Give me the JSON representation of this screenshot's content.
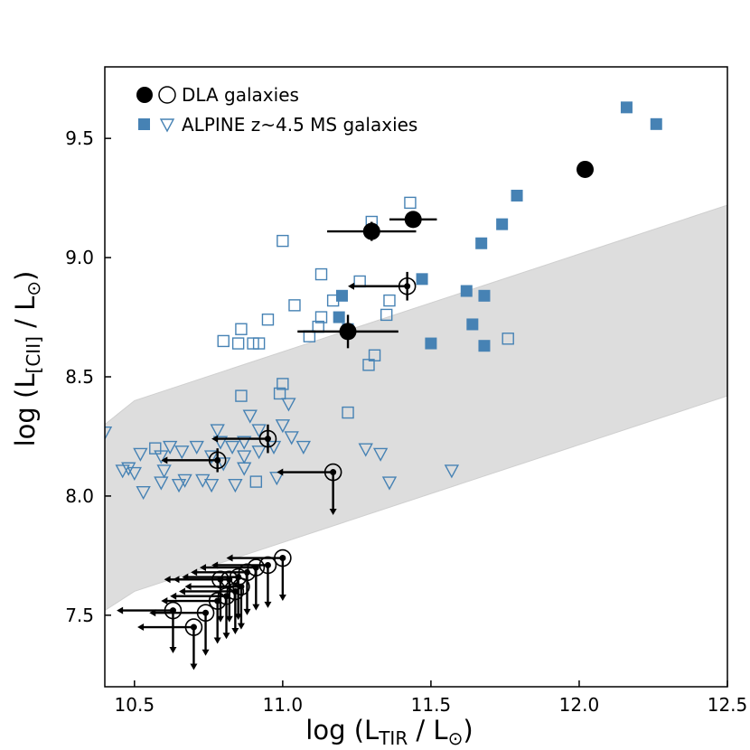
{
  "chart_data": {
    "type": "scatter",
    "xlabel_main": "log (L",
    "xlabel_sub": "TIR",
    "xlabel_tail": " / L",
    "xlabel_sun": "⊙",
    "xlabel_end": ")",
    "ylabel_main": "log (L",
    "ylabel_sub": "[CII]",
    "ylabel_tail": " / L",
    "ylabel_sun": "⊙",
    "ylabel_end": ")",
    "xlim": [
      10.4,
      12.5
    ],
    "ylim": [
      7.2,
      9.8
    ],
    "xticks": [
      10.5,
      11.0,
      11.5,
      12.0,
      12.5
    ],
    "xtick_labels": [
      "10.5",
      "11.0",
      "11.5",
      "12.0",
      "12.5"
    ],
    "yticks": [
      7.5,
      8.0,
      8.5,
      9.0,
      9.5
    ],
    "ytick_labels": [
      "7.5",
      "8.0",
      "8.5",
      "9.0",
      "9.5"
    ],
    "legend": [
      {
        "label": "DLA galaxies",
        "markers": [
          "filled-circle",
          "open-circle"
        ],
        "color": "#000000"
      },
      {
        "label": "ALPINE z~4.5 MS galaxies",
        "markers": [
          "filled-square",
          "open-triangle-down"
        ],
        "color": "#4682b4"
      }
    ],
    "band": {
      "color": "#dddddd",
      "upper": [
        [
          10.4,
          8.3
        ],
        [
          10.5,
          8.4
        ],
        [
          12.5,
          9.22
        ]
      ],
      "lower": [
        [
          10.4,
          7.52
        ],
        [
          10.5,
          7.6
        ],
        [
          12.5,
          8.42
        ]
      ]
    },
    "series": [
      {
        "name": "DLA detections",
        "marker": "filled-circle",
        "color": "#000000",
        "points": [
          {
            "x": 12.02,
            "y": 9.37,
            "xerr": 0.02,
            "yerr": 0.02
          },
          {
            "x": 11.44,
            "y": 9.16,
            "xerr": 0.08,
            "yerr": 0.03
          },
          {
            "x": 11.3,
            "y": 9.11,
            "xerr": 0.15,
            "yerr": 0.04
          },
          {
            "x": 11.22,
            "y": 8.69,
            "xerr": 0.17,
            "yerr": 0.07
          }
        ]
      },
      {
        "name": "DLA TIR upper limits",
        "marker": "open-circle-dot",
        "color": "#000000",
        "points": [
          {
            "x": 11.42,
            "y": 8.88,
            "xlim_to": 11.22,
            "yerr": 0.06
          },
          {
            "x": 10.95,
            "y": 8.24,
            "xlim_to": 10.76,
            "yerr": 0.06
          },
          {
            "x": 10.78,
            "y": 8.15,
            "xlim_to": 10.59,
            "yerr": 0.05
          }
        ]
      },
      {
        "name": "DLA double upper limits",
        "marker": "open-circle-dot",
        "color": "#000000",
        "points": [
          {
            "x": 11.17,
            "y": 8.1,
            "xlim_to": 10.98,
            "ylim_to": 7.92
          },
          {
            "x": 11.0,
            "y": 7.74,
            "xlim_to": 10.81,
            "ylim_to": 7.56
          },
          {
            "x": 10.95,
            "y": 7.71,
            "xlim_to": 10.76,
            "ylim_to": 7.53
          },
          {
            "x": 10.91,
            "y": 7.7,
            "xlim_to": 10.72,
            "ylim_to": 7.52
          },
          {
            "x": 10.88,
            "y": 7.68,
            "xlim_to": 10.69,
            "ylim_to": 7.5
          },
          {
            "x": 10.85,
            "y": 7.66,
            "xlim_to": 10.66,
            "ylim_to": 7.48
          },
          {
            "x": 10.82,
            "y": 7.65,
            "xlim_to": 10.63,
            "ylim_to": 7.47
          },
          {
            "x": 10.79,
            "y": 7.65,
            "xlim_to": 10.6,
            "ylim_to": 7.47
          },
          {
            "x": 10.86,
            "y": 7.62,
            "xlim_to": 10.67,
            "ylim_to": 7.44
          },
          {
            "x": 10.84,
            "y": 7.6,
            "xlim_to": 10.65,
            "ylim_to": 7.42
          },
          {
            "x": 10.81,
            "y": 7.58,
            "xlim_to": 10.62,
            "ylim_to": 7.4
          },
          {
            "x": 10.78,
            "y": 7.56,
            "xlim_to": 10.59,
            "ylim_to": 7.38
          },
          {
            "x": 10.63,
            "y": 7.52,
            "xlim_to": 10.44,
            "ylim_to": 7.34
          },
          {
            "x": 10.74,
            "y": 7.51,
            "xlim_to": 10.55,
            "ylim_to": 7.33
          },
          {
            "x": 10.7,
            "y": 7.45,
            "xlim_to": 10.51,
            "ylim_to": 7.27
          }
        ]
      },
      {
        "name": "ALPINE detections",
        "marker": "filled-square",
        "color": "#4682b4",
        "points": [
          {
            "x": 12.16,
            "y": 9.63
          },
          {
            "x": 12.26,
            "y": 9.56
          },
          {
            "x": 11.79,
            "y": 9.26
          },
          {
            "x": 11.74,
            "y": 9.14
          },
          {
            "x": 11.67,
            "y": 9.06
          },
          {
            "x": 11.47,
            "y": 8.91
          },
          {
            "x": 11.62,
            "y": 8.86
          },
          {
            "x": 11.68,
            "y": 8.84
          },
          {
            "x": 11.64,
            "y": 8.72
          },
          {
            "x": 11.68,
            "y": 8.63
          },
          {
            "x": 11.5,
            "y": 8.64
          },
          {
            "x": 11.2,
            "y": 8.84
          },
          {
            "x": 11.19,
            "y": 8.75
          },
          {
            "x": 11.22,
            "y": 8.7
          }
        ]
      },
      {
        "name": "ALPINE open squares",
        "marker": "open-square",
        "color": "#4682b4",
        "points": [
          {
            "x": 11.43,
            "y": 9.23
          },
          {
            "x": 11.3,
            "y": 9.15
          },
          {
            "x": 11.0,
            "y": 9.07
          },
          {
            "x": 11.13,
            "y": 8.93
          },
          {
            "x": 11.26,
            "y": 8.9
          },
          {
            "x": 11.04,
            "y": 8.8
          },
          {
            "x": 11.17,
            "y": 8.82
          },
          {
            "x": 11.36,
            "y": 8.82
          },
          {
            "x": 11.13,
            "y": 8.75
          },
          {
            "x": 11.35,
            "y": 8.76
          },
          {
            "x": 10.95,
            "y": 8.74
          },
          {
            "x": 11.12,
            "y": 8.71
          },
          {
            "x": 10.86,
            "y": 8.7
          },
          {
            "x": 11.09,
            "y": 8.67
          },
          {
            "x": 10.8,
            "y": 8.65
          },
          {
            "x": 10.85,
            "y": 8.64
          },
          {
            "x": 10.9,
            "y": 8.64
          },
          {
            "x": 10.92,
            "y": 8.64
          },
          {
            "x": 11.76,
            "y": 8.66
          },
          {
            "x": 11.31,
            "y": 8.59
          },
          {
            "x": 11.29,
            "y": 8.55
          },
          {
            "x": 11.0,
            "y": 8.47
          },
          {
            "x": 10.99,
            "y": 8.43
          },
          {
            "x": 10.86,
            "y": 8.42
          },
          {
            "x": 11.22,
            "y": 8.35
          },
          {
            "x": 10.57,
            "y": 8.2
          },
          {
            "x": 10.91,
            "y": 8.06
          }
        ]
      },
      {
        "name": "ALPINE upper limits",
        "marker": "open-triangle-down",
        "color": "#4682b4",
        "points": [
          {
            "x": 11.02,
            "y": 8.39
          },
          {
            "x": 10.89,
            "y": 8.34
          },
          {
            "x": 10.78,
            "y": 8.28
          },
          {
            "x": 10.92,
            "y": 8.28
          },
          {
            "x": 11.0,
            "y": 8.3
          },
          {
            "x": 11.03,
            "y": 8.25
          },
          {
            "x": 10.79,
            "y": 8.23
          },
          {
            "x": 10.83,
            "y": 8.21
          },
          {
            "x": 10.87,
            "y": 8.23
          },
          {
            "x": 10.97,
            "y": 8.21
          },
          {
            "x": 11.07,
            "y": 8.21
          },
          {
            "x": 10.62,
            "y": 8.21
          },
          {
            "x": 10.66,
            "y": 8.19
          },
          {
            "x": 10.71,
            "y": 8.21
          },
          {
            "x": 10.52,
            "y": 8.18
          },
          {
            "x": 10.59,
            "y": 8.17
          },
          {
            "x": 10.76,
            "y": 8.17
          },
          {
            "x": 10.87,
            "y": 8.17
          },
          {
            "x": 10.92,
            "y": 8.19
          },
          {
            "x": 10.8,
            "y": 8.14
          },
          {
            "x": 10.87,
            "y": 8.12
          },
          {
            "x": 10.48,
            "y": 8.12
          },
          {
            "x": 10.46,
            "y": 8.11
          },
          {
            "x": 10.5,
            "y": 8.1
          },
          {
            "x": 10.6,
            "y": 8.11
          },
          {
            "x": 10.67,
            "y": 8.07
          },
          {
            "x": 10.59,
            "y": 8.06
          },
          {
            "x": 10.73,
            "y": 8.07
          },
          {
            "x": 10.76,
            "y": 8.05
          },
          {
            "x": 10.84,
            "y": 8.05
          },
          {
            "x": 10.53,
            "y": 8.02
          },
          {
            "x": 10.65,
            "y": 8.05
          },
          {
            "x": 10.98,
            "y": 8.08
          },
          {
            "x": 11.28,
            "y": 8.2
          },
          {
            "x": 11.33,
            "y": 8.18
          },
          {
            "x": 11.36,
            "y": 8.06
          },
          {
            "x": 11.57,
            "y": 8.11
          },
          {
            "x": 10.4,
            "y": 8.27
          }
        ]
      }
    ]
  }
}
